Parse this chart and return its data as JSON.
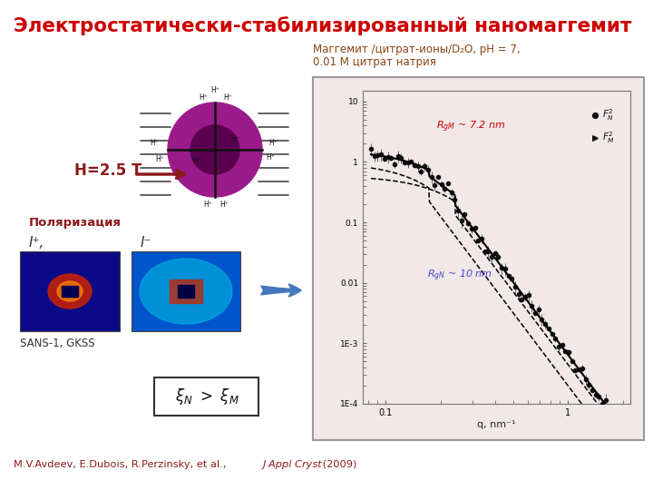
{
  "title": "Электростатически-стабилизированный наномаггемит",
  "title_color": "#CC0000",
  "title_fontsize": 15.5,
  "bg_color": "#FFFFFF",
  "subtitle_line1": "Маггемит /цитрат-ионы/D₂O, pH = 7,",
  "subtitle_line2": "0.01 М цитрат натрия",
  "subtitle_color": "#8B4513",
  "h_field_label": "H=2.5 T",
  "h_field_color": "#8B1A1A",
  "polarization_label": "Поляризация",
  "polarization_color": "#8B1A1A",
  "sans_label": "SANS-1, GKSS",
  "sans_color": "#333333",
  "rg_m_label": "RgM ~ 7.2 nm",
  "rg_n_label": "RgN ~ 10 nm",
  "rg_m_color": "#CC0000",
  "rg_n_color": "#4444CC",
  "citation_normal": "M.V.Avdeev, E.Dubois, R.Perzinsky, et al., ",
  "citation_italic": "J Appl Cryst",
  "citation_year": " (2009)",
  "citation_color": "#8B1A1A",
  "plot_bg": "#F2E8E8",
  "plot_border": "#AAAAAA",
  "particle_outer_color": "#9B1B8B",
  "particle_inner_color": "#5B0050",
  "line_color": "#555555",
  "arrow_color": "#8B1A1A"
}
